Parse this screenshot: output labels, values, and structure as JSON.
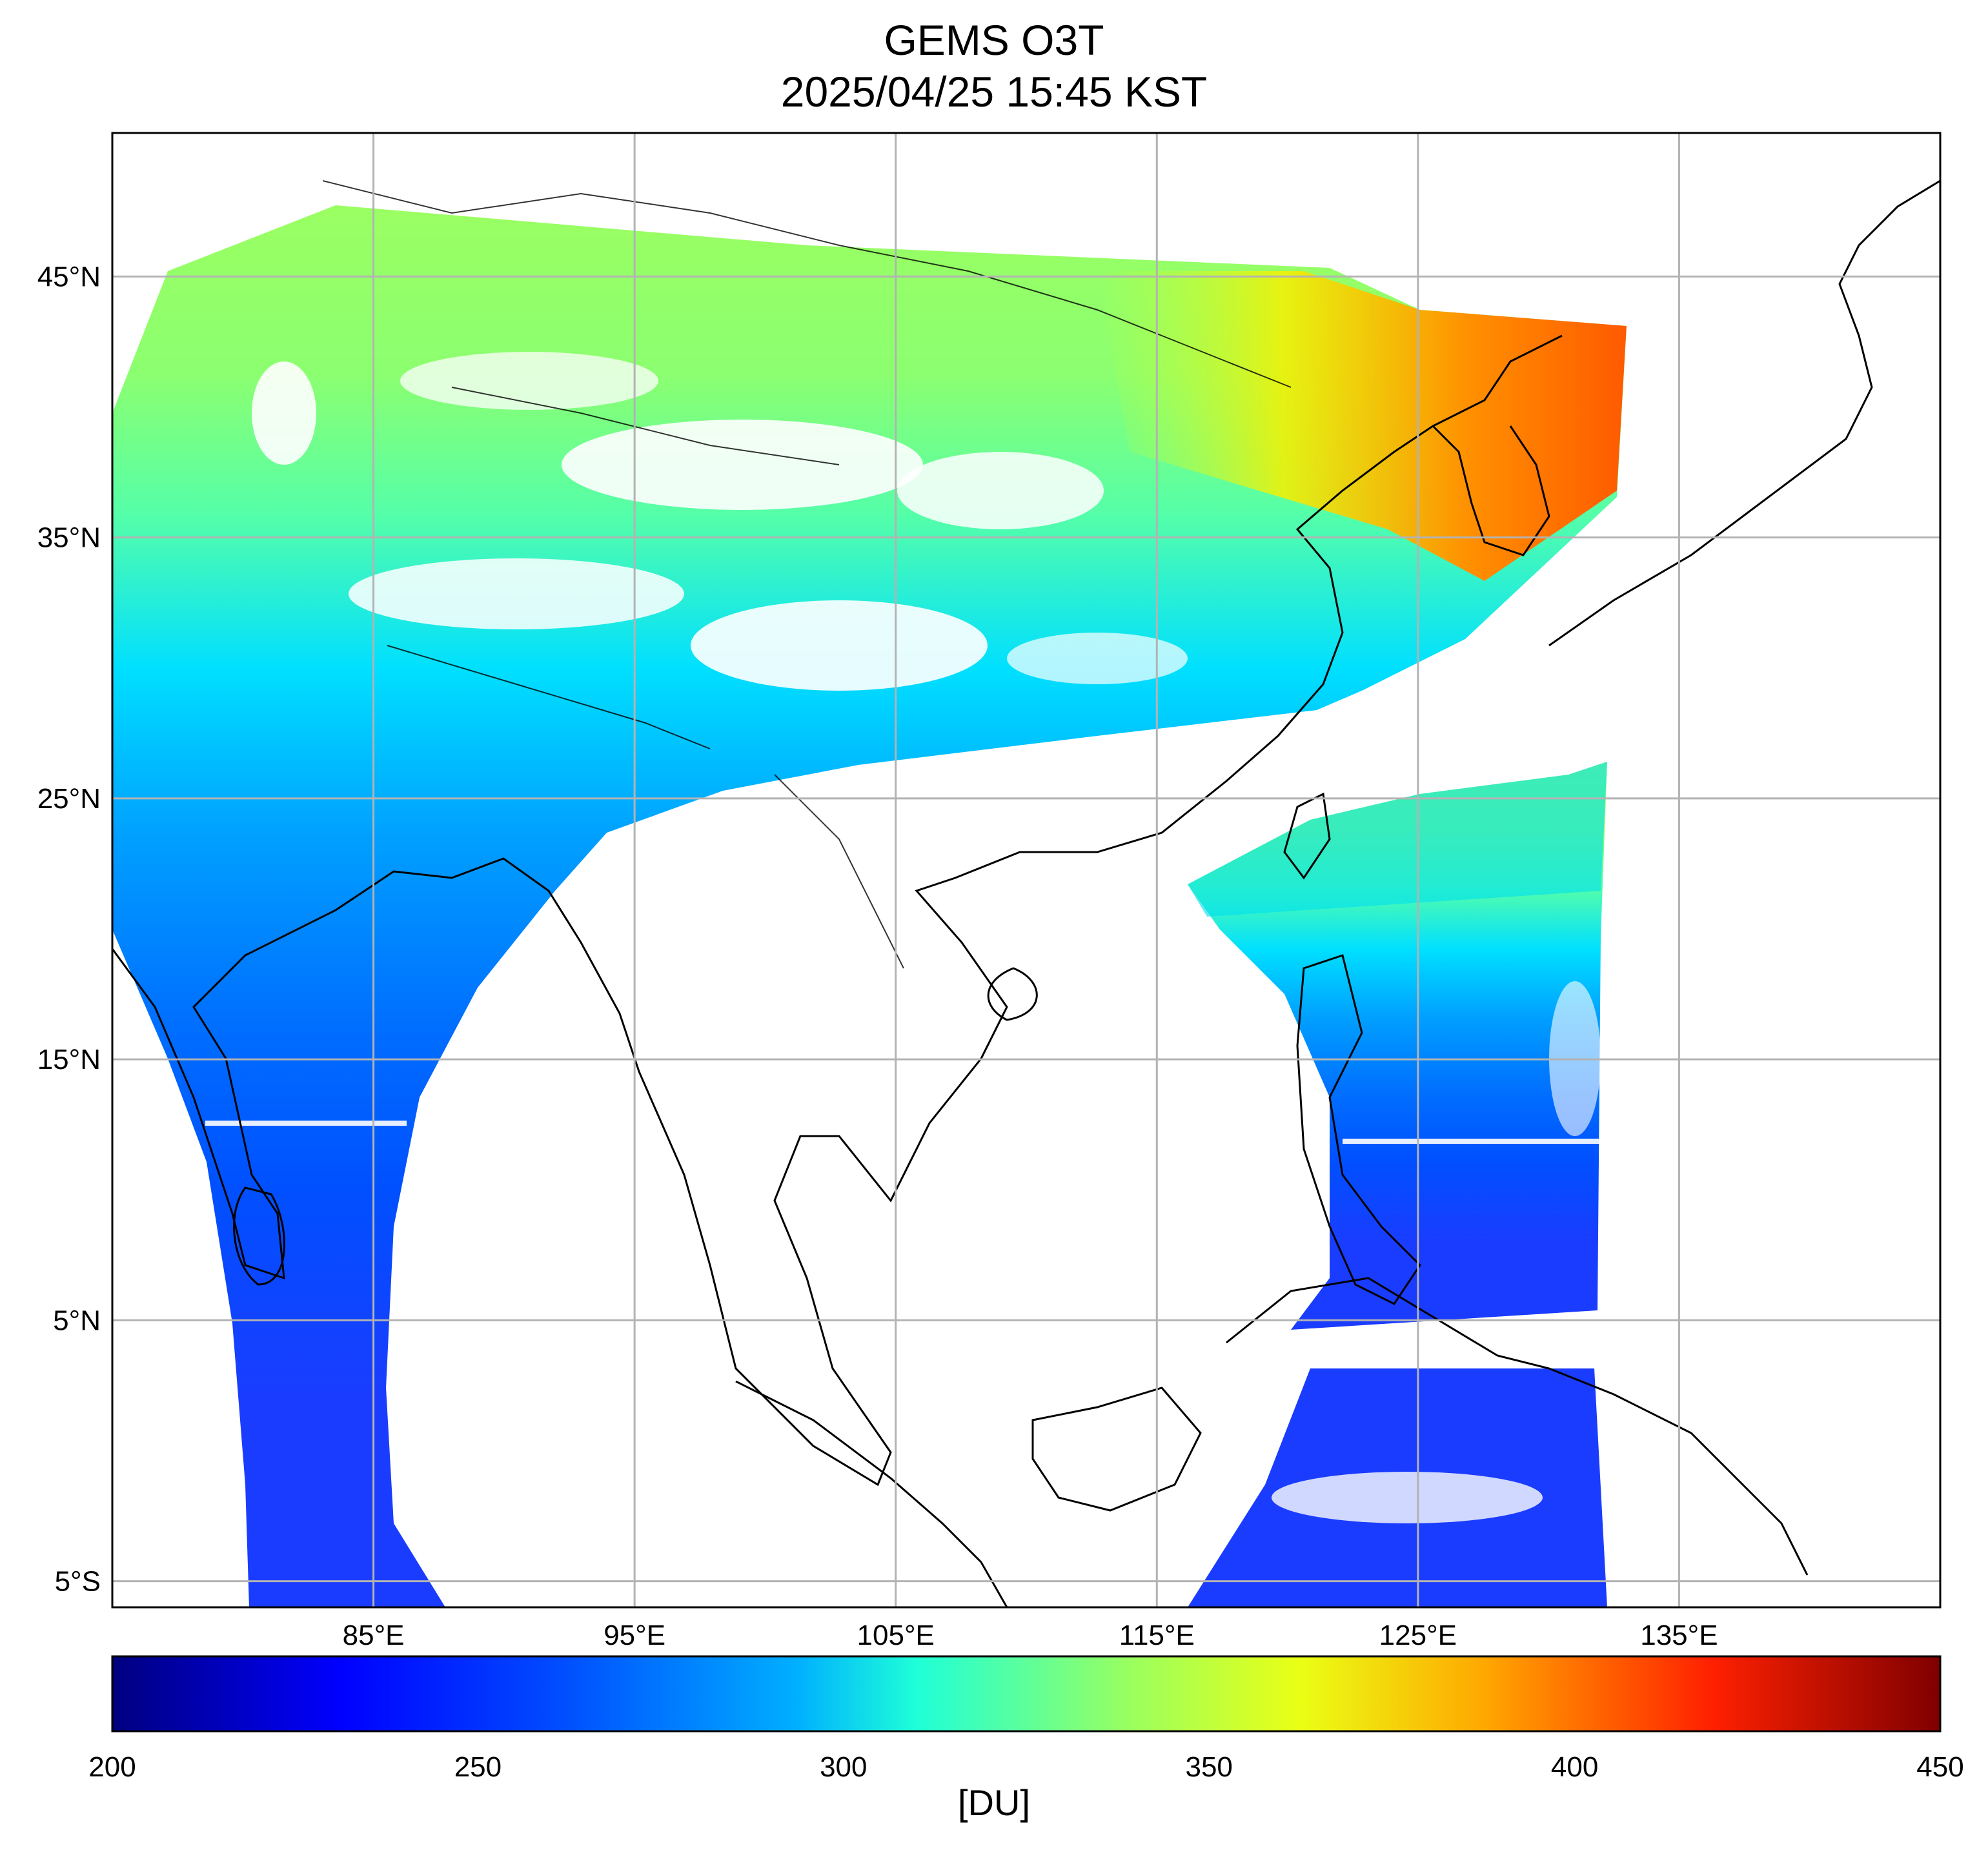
{
  "title": "GEMS O3T",
  "subtitle": "2025/04/25 15:45 KST",
  "map": {
    "lon_range": [
      75,
      145
    ],
    "lat_range": [
      -6,
      50.5
    ],
    "lon_ticks": [
      {
        "value": 85,
        "label": "85°E"
      },
      {
        "value": 95,
        "label": "95°E"
      },
      {
        "value": 105,
        "label": "105°E"
      },
      {
        "value": 115,
        "label": "115°E"
      },
      {
        "value": 125,
        "label": "125°E"
      },
      {
        "value": 135,
        "label": "135°E"
      }
    ],
    "lat_ticks": [
      {
        "value": 45,
        "label": "45°N"
      },
      {
        "value": 35,
        "label": "35°N"
      },
      {
        "value": 25,
        "label": "25°N"
      },
      {
        "value": 15,
        "label": "15°N"
      },
      {
        "value": 5,
        "label": "5°N"
      },
      {
        "value": -5,
        "label": "5°S"
      }
    ],
    "grid": true
  },
  "colorbar": {
    "range": [
      200,
      450
    ],
    "ticks": [
      {
        "value": 200,
        "label": "200"
      },
      {
        "value": 250,
        "label": "250"
      },
      {
        "value": 300,
        "label": "300"
      },
      {
        "value": 350,
        "label": "350"
      },
      {
        "value": 400,
        "label": "400"
      },
      {
        "value": 450,
        "label": "450"
      }
    ],
    "unit_label": "[DU]",
    "colormap": "jet",
    "colors": [
      "#00007f",
      "#0000ff",
      "#007fff",
      "#00ffff",
      "#7fff7f",
      "#ffff00",
      "#ff7f00",
      "#ff0000",
      "#7f0000"
    ]
  }
}
